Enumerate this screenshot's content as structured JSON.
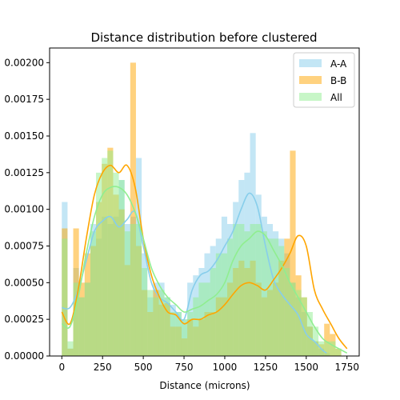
{
  "chart_data": {
    "type": "bar",
    "title": "Distance distribution before clustered",
    "xlabel": "Distance (microns)",
    "ylabel": "",
    "xlim": [
      -75,
      1825
    ],
    "ylim": [
      0,
      0.0021
    ],
    "x_ticks": [
      0,
      250,
      500,
      750,
      1000,
      1250,
      1500,
      1750
    ],
    "y_ticks": [
      0.0,
      0.00025,
      0.0005,
      0.00075,
      0.001,
      0.00125,
      0.0015,
      0.00175,
      0.002
    ],
    "x_tick_labels": [
      "0",
      "250",
      "500",
      "750",
      "1000",
      "1250",
      "1500",
      "1750"
    ],
    "y_tick_labels": [
      "0.00000",
      "0.00025",
      "0.00050",
      "0.00075",
      "0.00100",
      "0.00125",
      "0.00150",
      "0.00175",
      "0.00200"
    ],
    "legend": {
      "position": "top-right",
      "entries": [
        "A-A",
        "B-B",
        "All"
      ]
    },
    "grid": false,
    "bin_width": 35,
    "series": [
      {
        "name": "A-A",
        "color": "#87ceeb",
        "bin_starts": [
          0,
          35,
          70,
          105,
          140,
          175,
          210,
          245,
          280,
          315,
          350,
          385,
          420,
          455,
          490,
          525,
          560,
          595,
          630,
          665,
          700,
          735,
          770,
          805,
          840,
          875,
          910,
          945,
          980,
          1015,
          1050,
          1085,
          1120,
          1155,
          1190,
          1225,
          1260,
          1295,
          1330,
          1365,
          1400,
          1435,
          1470,
          1505,
          1540,
          1575,
          1610
        ],
        "values": [
          0.00105,
          5e-05,
          0.0006,
          0.0004,
          0.0005,
          0.0009,
          0.0008,
          0.00095,
          0.0009,
          0.00095,
          0.0012,
          0.0009,
          0.00095,
          0.00135,
          0.0007,
          0.0004,
          0.0005,
          0.0005,
          0.0004,
          0.00035,
          0.0003,
          0.00025,
          0.0005,
          0.00055,
          0.0006,
          0.0007,
          0.00075,
          0.0008,
          0.00095,
          0.0009,
          0.00105,
          0.0012,
          0.00125,
          0.00152,
          0.0011,
          0.00095,
          0.0009,
          0.00085,
          0.0008,
          0.0007,
          0.0005,
          0.0004,
          0.0003,
          0.0002,
          0.0001,
          5e-05,
          2e-05
        ],
        "kde_x": [
          0,
          50,
          100,
          150,
          200,
          250,
          300,
          350,
          400,
          450,
          500,
          550,
          600,
          650,
          700,
          750,
          800,
          850,
          900,
          950,
          1000,
          1050,
          1100,
          1150,
          1200,
          1250,
          1300,
          1350,
          1400,
          1450,
          1500,
          1550,
          1600,
          1625
        ],
        "kde_y": [
          0.00033,
          0.00033,
          0.00045,
          0.00065,
          0.00085,
          0.00092,
          0.00095,
          0.00088,
          0.00093,
          0.00098,
          0.00075,
          0.0005,
          0.0004,
          0.00036,
          0.0003,
          0.00025,
          0.00045,
          0.00055,
          0.00058,
          0.00065,
          0.00075,
          0.00085,
          0.001,
          0.00111,
          0.00102,
          0.00075,
          0.00052,
          0.00042,
          0.00035,
          0.00028,
          0.00015,
          0.0001,
          4e-05,
          2e-05
        ]
      },
      {
        "name": "B-B",
        "color": "#ffa500",
        "bin_starts": [
          0,
          35,
          70,
          105,
          140,
          175,
          210,
          245,
          280,
          315,
          350,
          385,
          420,
          455,
          490,
          525,
          560,
          595,
          630,
          665,
          700,
          735,
          770,
          805,
          840,
          875,
          910,
          945,
          980,
          1015,
          1050,
          1085,
          1120,
          1155,
          1190,
          1225,
          1260,
          1295,
          1330,
          1365,
          1400,
          1435,
          1470,
          1505,
          1540,
          1575,
          1610,
          1645,
          1680
        ],
        "values": [
          0.00087,
          5e-05,
          0.00087,
          0.0005,
          0.0007,
          0.00075,
          0.00105,
          0.00131,
          0.00142,
          0.0011,
          0.001,
          0.00062,
          0.002,
          0.00075,
          0.00045,
          0.0003,
          0.00045,
          0.00035,
          0.00036,
          0.0002,
          0.0002,
          0.00012,
          0.00025,
          0.0002,
          0.00025,
          0.0003,
          0.0003,
          0.0004,
          0.0004,
          0.0005,
          0.0006,
          0.00065,
          0.0006,
          0.00065,
          0.0005,
          0.0004,
          0.00045,
          0.0005,
          0.00065,
          0.0008,
          0.0014,
          0.00055,
          0.0004,
          0.0002,
          0.0001,
          8e-05,
          0.00022,
          0.00015,
          5e-05
        ],
        "kde_x": [
          0,
          50,
          100,
          150,
          200,
          250,
          300,
          350,
          400,
          450,
          500,
          550,
          600,
          650,
          700,
          750,
          800,
          850,
          900,
          950,
          1000,
          1050,
          1100,
          1150,
          1200,
          1250,
          1300,
          1350,
          1400,
          1450,
          1500,
          1550,
          1600,
          1650,
          1700,
          1750
        ],
        "kde_y": [
          0.0003,
          0.00022,
          0.00045,
          0.0008,
          0.0011,
          0.00125,
          0.0013,
          0.00125,
          0.0013,
          0.00115,
          0.0008,
          0.00055,
          0.0004,
          0.0003,
          0.00028,
          0.00022,
          0.00025,
          0.00025,
          0.00028,
          0.0003,
          0.00035,
          0.00042,
          0.00048,
          0.0005,
          0.00048,
          0.00045,
          0.00052,
          0.0006,
          0.0007,
          0.00082,
          0.00075,
          0.00045,
          0.00032,
          0.00022,
          0.00012,
          5e-05
        ]
      },
      {
        "name": "All",
        "color": "#90ee90",
        "bin_starts": [
          0,
          35,
          70,
          105,
          140,
          175,
          210,
          245,
          280,
          315,
          350,
          385,
          420,
          455,
          490,
          525,
          560,
          595,
          630,
          665,
          700,
          735,
          770,
          805,
          840,
          875,
          910,
          945,
          980,
          1015,
          1050,
          1085,
          1120,
          1155,
          1190,
          1225,
          1260,
          1295,
          1330,
          1365,
          1400,
          1435,
          1470,
          1505,
          1540,
          1575,
          1610,
          1645,
          1680
        ],
        "values": [
          0.0008,
          0.0001,
          0.0005,
          0.0004,
          0.0005,
          0.00085,
          0.00125,
          0.00135,
          0.0014,
          0.00125,
          0.0012,
          0.00085,
          0.0009,
          0.0009,
          0.0006,
          0.00045,
          0.0004,
          0.00045,
          0.0004,
          0.0003,
          0.0003,
          0.00025,
          0.0003,
          0.0004,
          0.0005,
          0.0005,
          0.0006,
          0.0007,
          0.0007,
          0.0008,
          0.0009,
          0.0009,
          0.00085,
          0.0009,
          0.0009,
          0.00085,
          0.0008,
          0.0008,
          0.00075,
          0.0006,
          0.0005,
          0.00045,
          0.0004,
          0.0003,
          0.0002,
          0.0001,
          0.0001,
          0.0001,
          5e-05
        ],
        "kde_x": [
          0,
          50,
          100,
          150,
          200,
          250,
          300,
          350,
          400,
          450,
          500,
          550,
          600,
          650,
          700,
          750,
          800,
          850,
          900,
          950,
          1000,
          1050,
          1100,
          1150,
          1200,
          1250,
          1300,
          1350,
          1400,
          1450,
          1500,
          1550,
          1600,
          1650,
          1700,
          1750
        ],
        "kde_y": [
          0.00022,
          0.0002,
          0.0004,
          0.0007,
          0.00095,
          0.0011,
          0.00115,
          0.00115,
          0.0011,
          0.00098,
          0.0008,
          0.0006,
          0.00048,
          0.0004,
          0.00035,
          0.0003,
          0.00032,
          0.00034,
          0.00038,
          0.00042,
          0.0005,
          0.00065,
          0.00075,
          0.0008,
          0.00085,
          0.00082,
          0.00072,
          0.00062,
          0.0005,
          0.0004,
          0.0003,
          0.0002,
          0.00012,
          8e-05,
          5e-05,
          2e-05
        ]
      }
    ]
  }
}
